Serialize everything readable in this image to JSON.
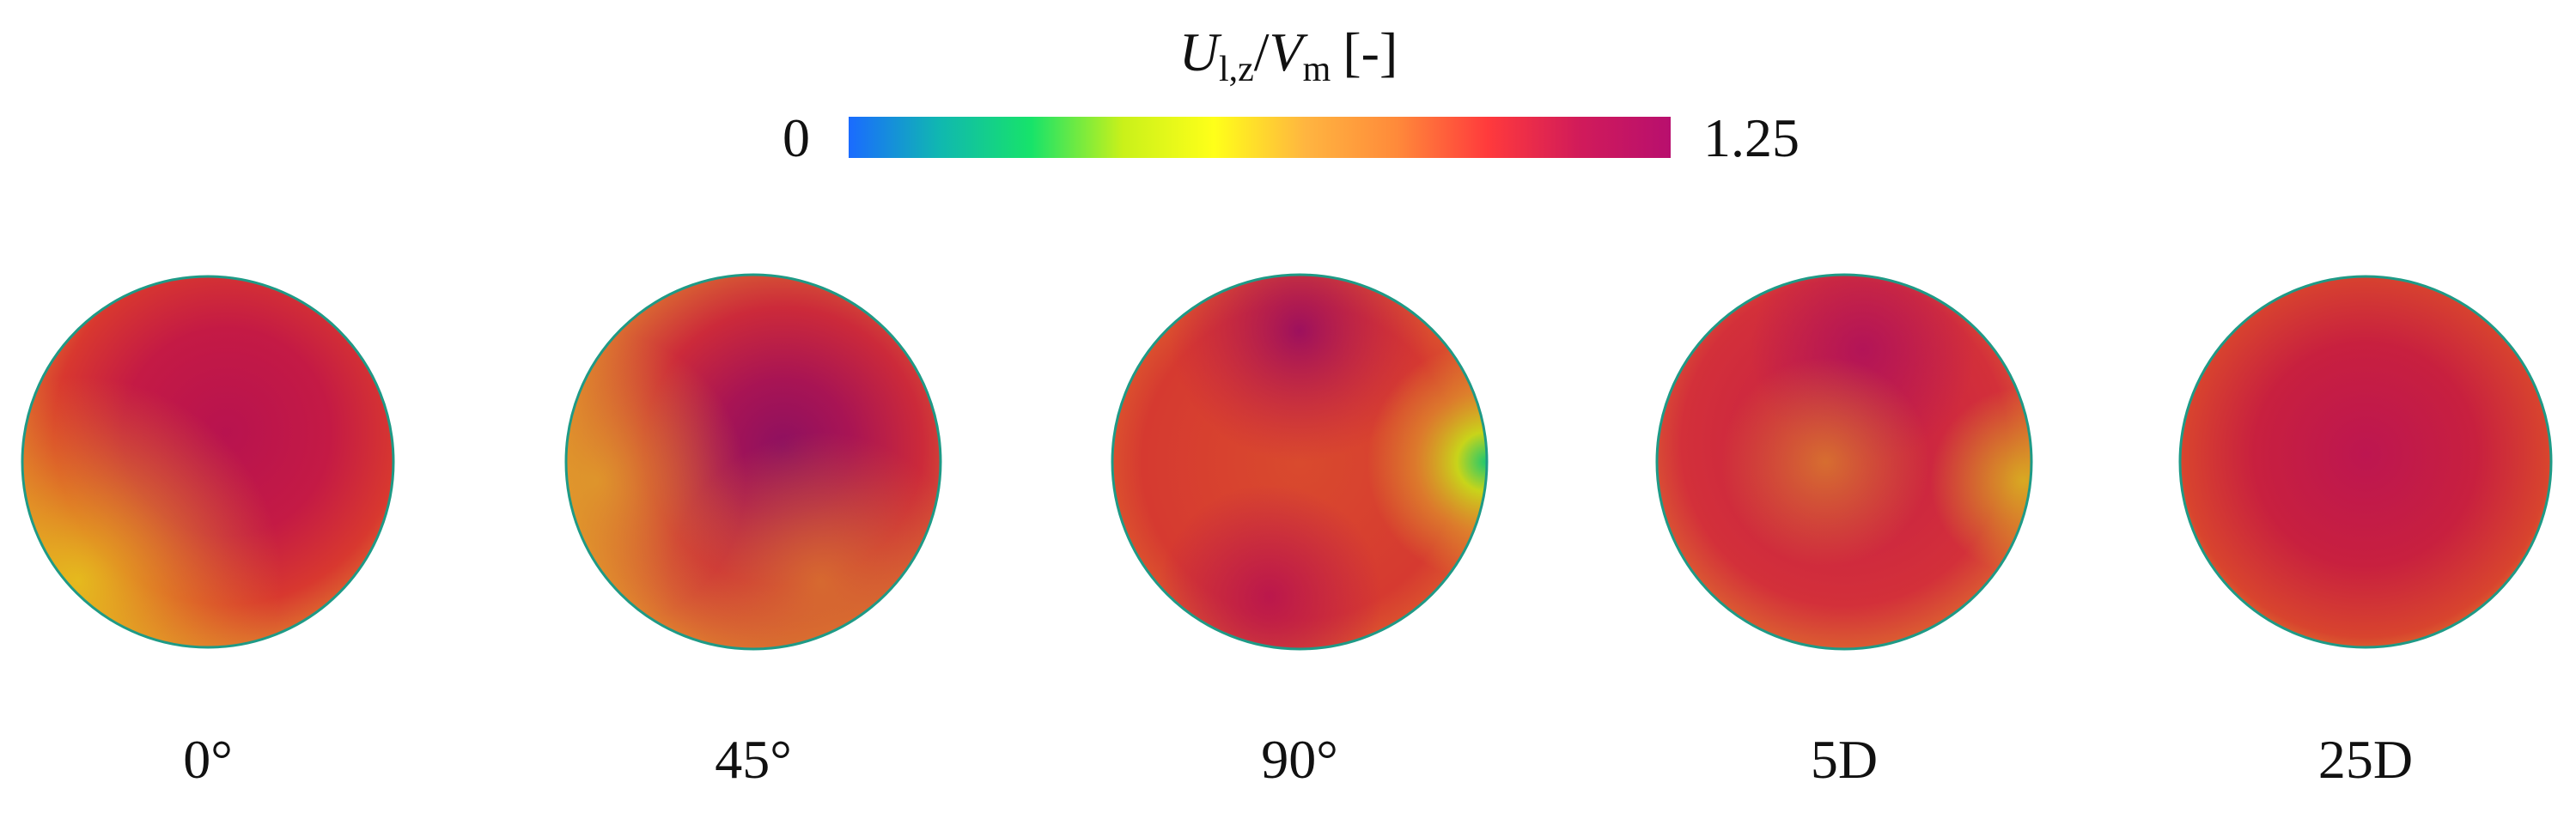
{
  "colorbar": {
    "title": {
      "var": "U",
      "var_sub": "l,z",
      "slash": "/",
      "ref": "V",
      "ref_sub": "m",
      "unit": "[-]"
    },
    "min_label": "0",
    "max_label": "1.25",
    "colors": [
      "#1a6bff",
      "#10b8b0",
      "#17e36a",
      "#c9f11a",
      "#ffff19",
      "#ffb540",
      "#ff8a3a",
      "#ff3a3c",
      "#d11b5a",
      "#b80f6e"
    ]
  },
  "panels": [
    {
      "label": "0°"
    },
    {
      "label": "45°"
    },
    {
      "label": "90°"
    },
    {
      "label": "5D"
    },
    {
      "label": "25D"
    }
  ]
}
